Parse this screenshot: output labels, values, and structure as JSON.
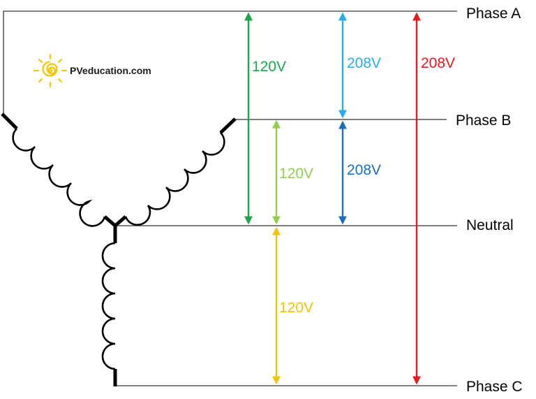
{
  "logo": {
    "text": "PVeducation.com",
    "icon": "sun-spiral-icon"
  },
  "lines": {
    "phase_a": "Phase A",
    "phase_b": "Phase B",
    "neutral": "Neutral",
    "phase_c": "Phase C"
  },
  "voltages": [
    {
      "id": "a-neutral",
      "text": "120V",
      "color": "#1aa64b"
    },
    {
      "id": "b-neutral",
      "text": "120V",
      "color": "#8fd14f"
    },
    {
      "id": "c-neutral",
      "text": "120V",
      "color": "#f5c400"
    },
    {
      "id": "a-b",
      "text": "208V",
      "color": "#27aee8"
    },
    {
      "id": "b-c",
      "text": "208V",
      "color": "#1b6fbf"
    },
    {
      "id": "a-c",
      "text": "208V",
      "color": "#e8181f"
    }
  ]
}
